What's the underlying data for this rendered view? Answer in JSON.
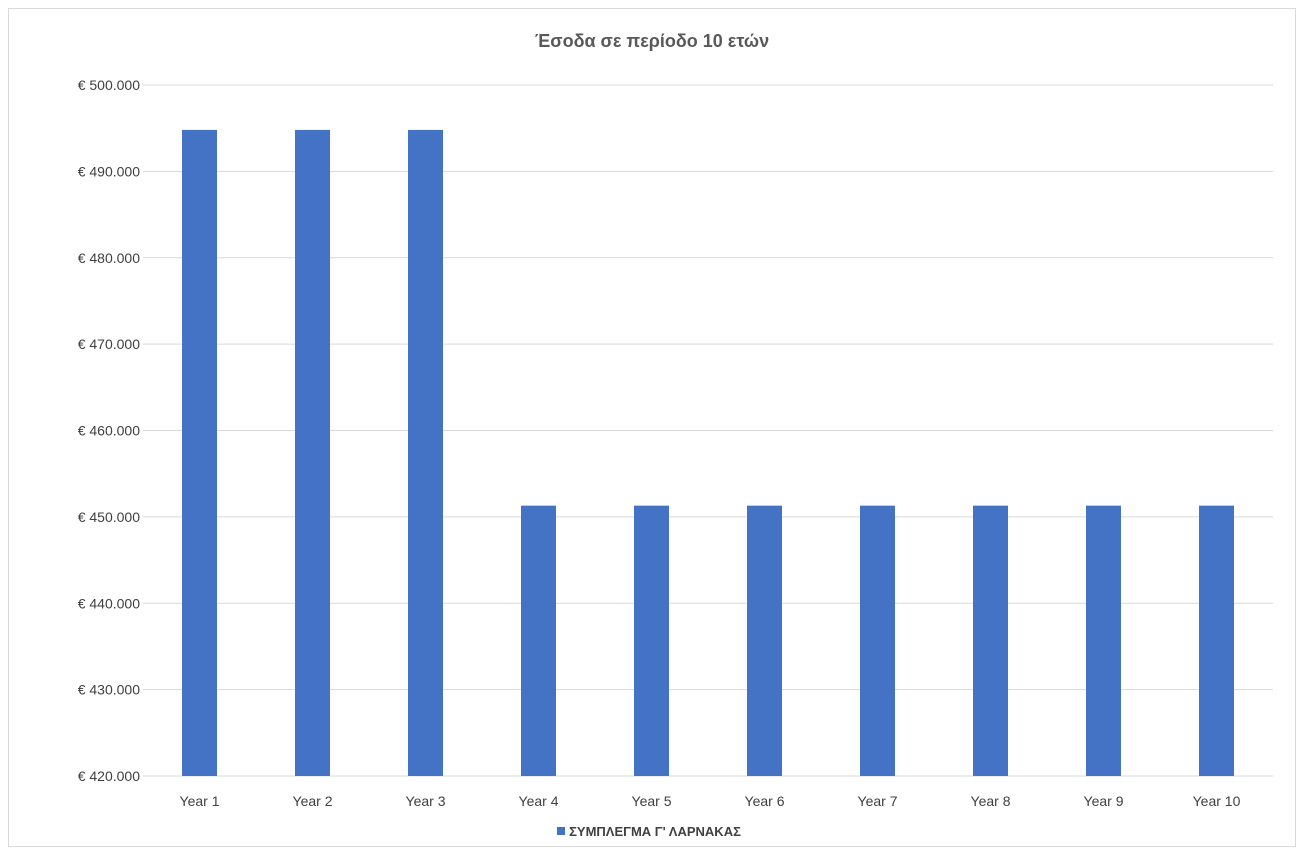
{
  "chart_data": {
    "type": "bar",
    "title": "Έσοδα σε περίοδο 10 ετών",
    "categories": [
      "Year 1",
      "Year 2",
      "Year 3",
      "Year 4",
      "Year 5",
      "Year 6",
      "Year 7",
      "Year 8",
      "Year 9",
      "Year 10"
    ],
    "series": [
      {
        "name": "ΣΥΜΠΛΕΓΜΑ Γ' ΛΑΡΝΑΚΑΣ",
        "values": [
          494800,
          494800,
          494800,
          451300,
          451300,
          451300,
          451300,
          451300,
          451300,
          451300
        ],
        "color": "#4472c4"
      }
    ],
    "xlabel": "",
    "ylabel": "",
    "ylim": [
      420000,
      500000
    ],
    "yticks": [
      420000,
      430000,
      440000,
      450000,
      460000,
      470000,
      480000,
      490000,
      500000
    ],
    "ytick_labels": [
      "€ 420.000",
      "€ 430.000",
      "€ 440.000",
      "€ 450.000",
      "€ 460.000",
      "€ 470.000",
      "€ 480.000",
      "€ 490.000",
      "€ 500.000"
    ],
    "grid": true,
    "legend_position": "bottom"
  }
}
